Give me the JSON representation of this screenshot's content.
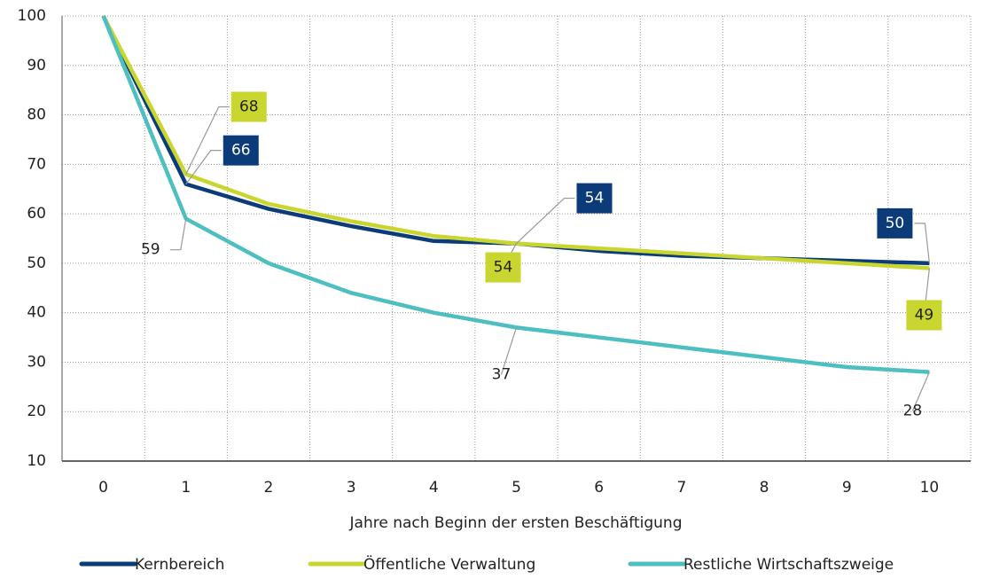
{
  "chart_data": {
    "type": "line",
    "x_label": "Jahre nach Beginn der ersten Beschäftigung",
    "x": [
      0,
      1,
      2,
      3,
      4,
      5,
      6,
      7,
      8,
      9,
      10
    ],
    "xlim": [
      -0.5,
      10.5
    ],
    "xticks": [
      0,
      1,
      2,
      3,
      4,
      5,
      6,
      7,
      8,
      9,
      10
    ],
    "ylim": [
      10,
      100
    ],
    "yticks": [
      10,
      20,
      30,
      40,
      50,
      60,
      70,
      80,
      90,
      100
    ],
    "grid": true,
    "legend": "bottom",
    "series": [
      {
        "name": "Kernbereich",
        "color": "#0b3b78",
        "values": [
          100,
          66,
          61,
          57.5,
          54.5,
          54,
          52.5,
          51.5,
          51,
          50.5,
          50
        ],
        "value_labels": [
          null,
          "66",
          null,
          null,
          null,
          "54",
          null,
          null,
          null,
          null,
          "50"
        ]
      },
      {
        "name": "Öffentliche Verwaltung",
        "color": "#c9d62f",
        "values": [
          100,
          68,
          62,
          58.5,
          55.5,
          54,
          53,
          52,
          51,
          50,
          49
        ],
        "value_labels": [
          null,
          "68",
          null,
          null,
          null,
          "54",
          null,
          null,
          null,
          null,
          "49"
        ]
      },
      {
        "name": "Restliche Wirtschaftszweige",
        "color": "#4dbfc0",
        "values": [
          100,
          59,
          50,
          44,
          40,
          37,
          35,
          33,
          31,
          29,
          28
        ],
        "value_labels": [
          null,
          "59",
          null,
          null,
          null,
          "37",
          null,
          null,
          null,
          null,
          "28"
        ]
      }
    ]
  }
}
